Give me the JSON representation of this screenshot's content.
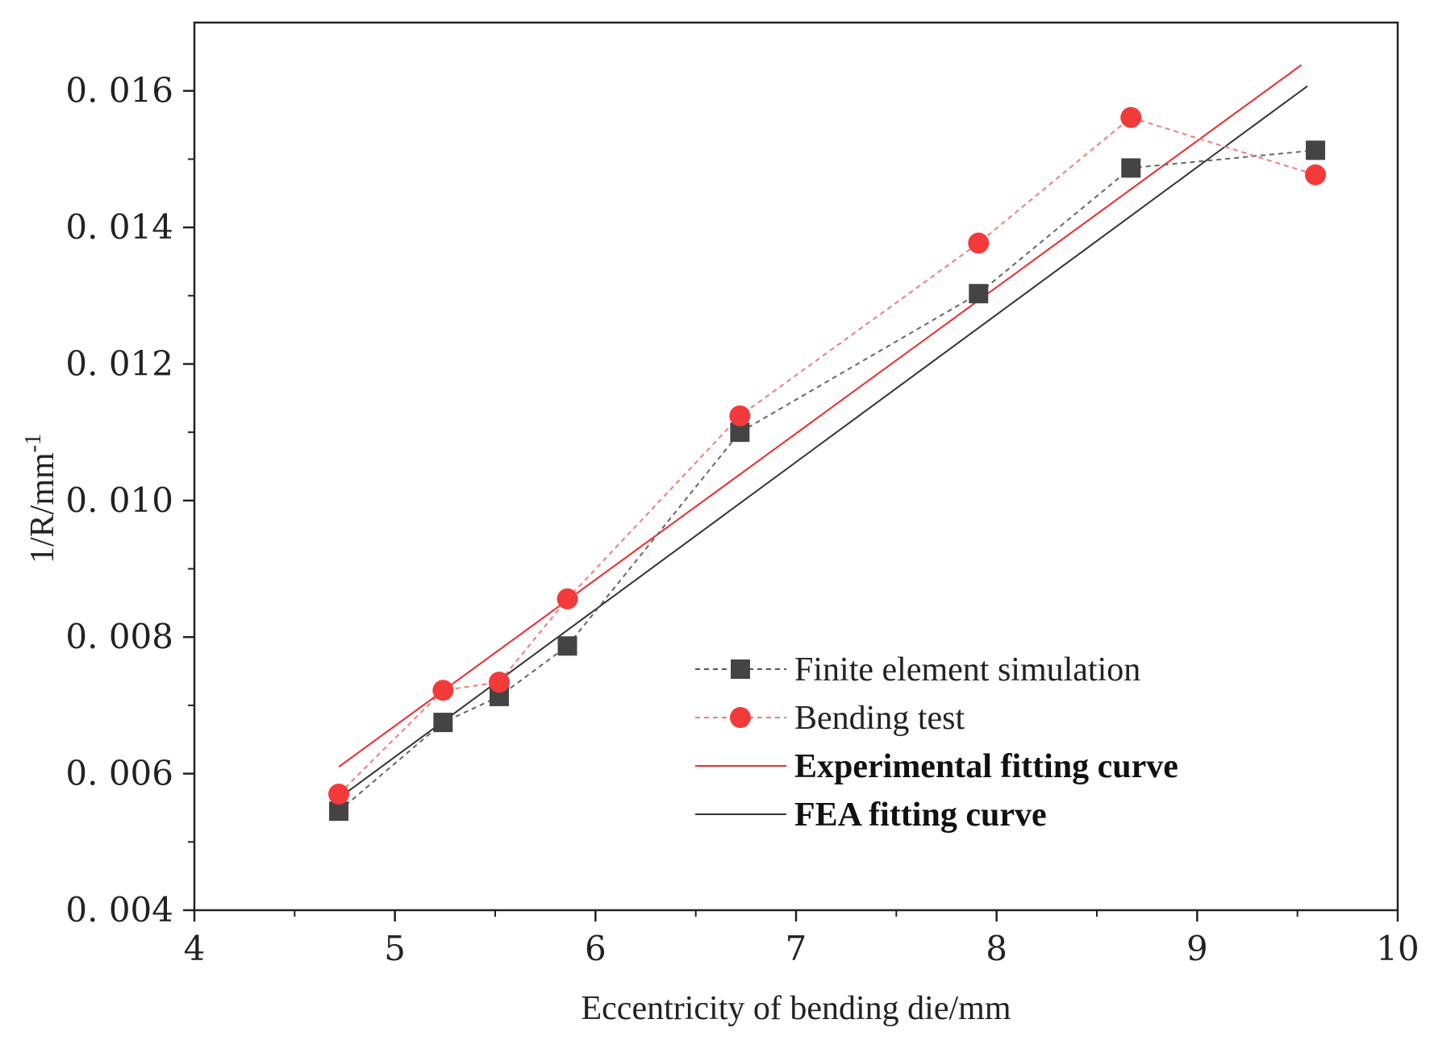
{
  "chart_data": {
    "type": "line",
    "title": "",
    "xlabel": "Eccentricity of bending die/mm",
    "ylabel_main": "1/R/mm",
    "ylabel_sup": "-1",
    "xlim": [
      4,
      10
    ],
    "ylim": [
      0.004,
      0.017
    ],
    "grid": false,
    "legend_position": "bottom-right",
    "x_ticks": [
      4,
      5,
      6,
      7,
      8,
      9,
      10
    ],
    "x_tick_labels": [
      "4",
      "5",
      "6",
      "7",
      "8",
      "9",
      "10"
    ],
    "x_minor_ticks": [
      4.5,
      5.5,
      6.5,
      7.5,
      8.5,
      9.5
    ],
    "y_ticks": [
      0.004,
      0.006,
      0.008,
      0.01,
      0.012,
      0.014,
      0.016
    ],
    "y_tick_labels": [
      "0. 004",
      "0. 006",
      "0. 008",
      "0. 010",
      "0. 012",
      "0. 014",
      "0. 016"
    ],
    "y_minor_ticks": [
      0.005,
      0.007,
      0.009,
      0.011,
      0.013,
      0.015
    ],
    "series": [
      {
        "name": "Finite element simulation",
        "kind": "scatter-line",
        "marker": "square",
        "color": "#444444",
        "x": [
          4.72,
          5.24,
          5.52,
          5.86,
          6.72,
          7.91,
          8.67,
          9.59
        ],
        "y": [
          0.00545,
          0.00675,
          0.00713,
          0.00787,
          0.011,
          0.01303,
          0.01487,
          0.01513
        ]
      },
      {
        "name": "Bending test",
        "kind": "scatter-line",
        "marker": "circle",
        "color": "#f23a3a",
        "x": [
          4.72,
          5.24,
          5.52,
          5.86,
          6.72,
          7.91,
          8.67,
          9.59
        ],
        "y": [
          0.0057,
          0.00722,
          0.00734,
          0.00856,
          0.01124,
          0.01377,
          0.01561,
          0.01477
        ]
      },
      {
        "name": "Experimental fitting curve",
        "kind": "fit",
        "color": "#ee2a2a",
        "x": [
          4.72,
          9.52
        ],
        "y": [
          0.0061,
          0.01638
        ]
      },
      {
        "name": "FEA fitting curve",
        "kind": "fit",
        "color": "#333333",
        "x": [
          4.72,
          9.55
        ],
        "y": [
          0.00564,
          0.01607
        ]
      }
    ]
  }
}
